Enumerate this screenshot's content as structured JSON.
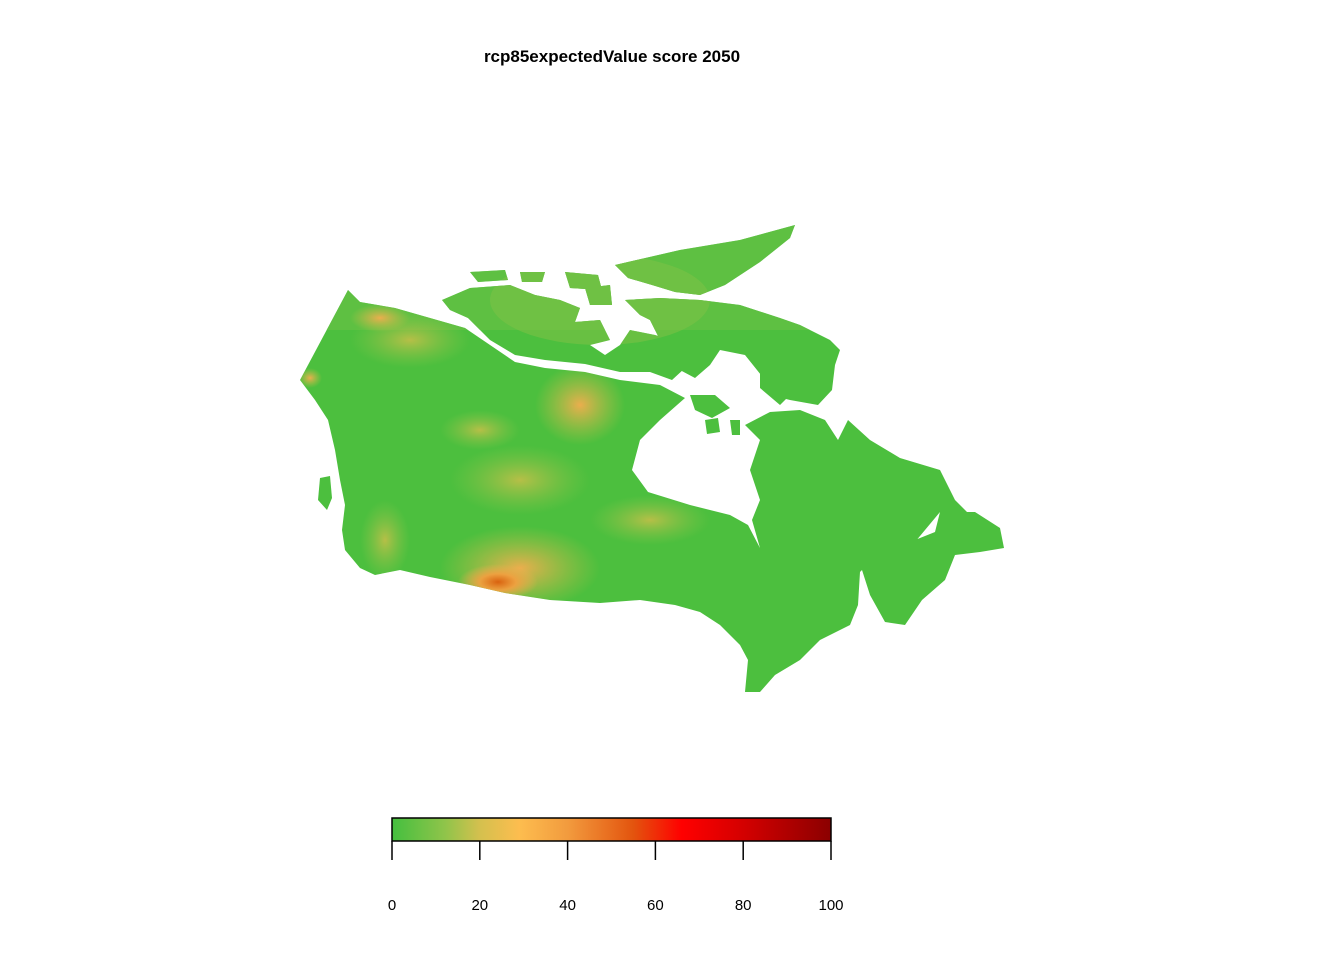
{
  "title": "rcp85expectedValue score 2050",
  "legend": {
    "scale_min": 0,
    "scale_max": 100,
    "ticks": [
      "0",
      "20",
      "40",
      "60",
      "80",
      "100"
    ],
    "gradient_stops": [
      {
        "value": 0,
        "color": "#44bf3f"
      },
      {
        "value": 12,
        "color": "#8fc44a"
      },
      {
        "value": 20,
        "color": "#d4c04e"
      },
      {
        "value": 29,
        "color": "#fdbd4f"
      },
      {
        "value": 40,
        "color": "#f29b3e"
      },
      {
        "value": 55,
        "color": "#e3540e"
      },
      {
        "value": 66,
        "color": "#ff0000"
      },
      {
        "value": 80,
        "color": "#d40000"
      },
      {
        "value": 100,
        "color": "#8b0000"
      }
    ]
  },
  "map": {
    "region": "Canada",
    "base_color": "#4cbf3e",
    "hotspot_colors": [
      "#f4a94a",
      "#e98a2a",
      "#d35a0e"
    ]
  }
}
